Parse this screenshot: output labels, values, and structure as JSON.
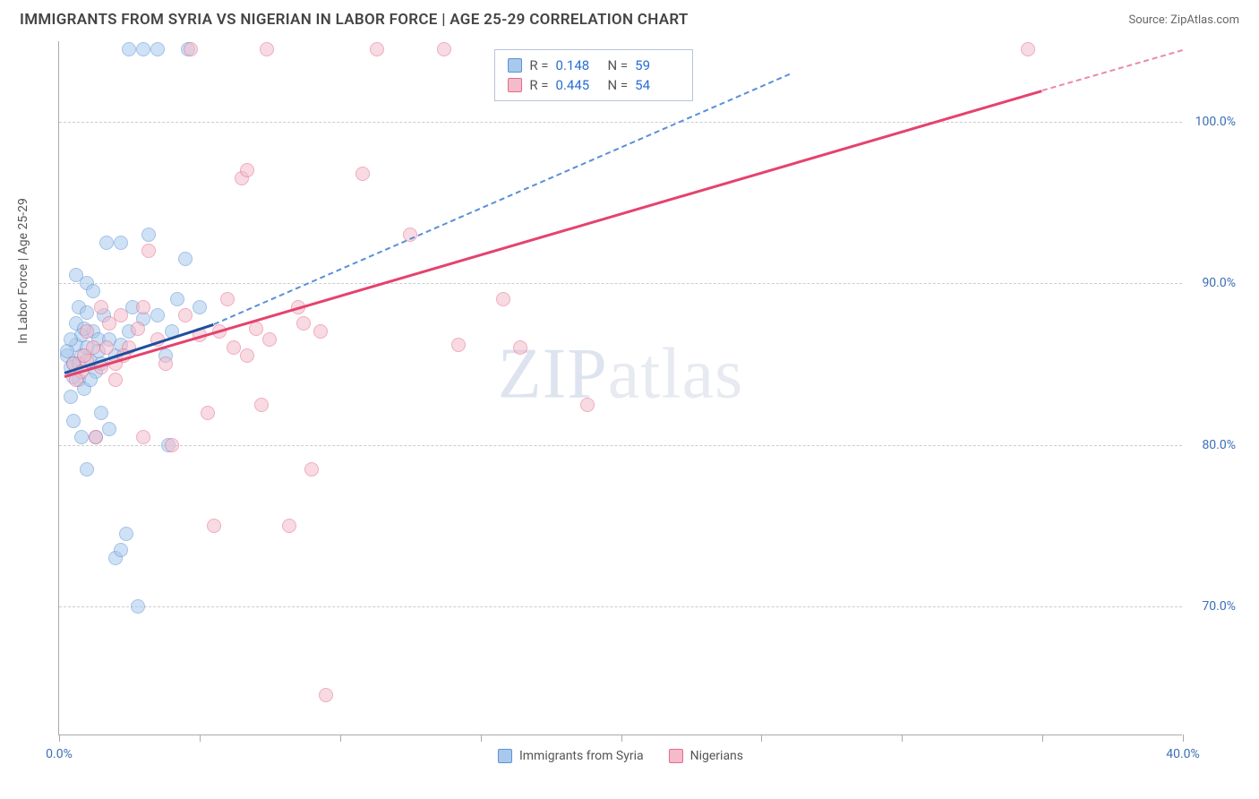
{
  "header": {
    "title": "IMMIGRANTS FROM SYRIA VS NIGERIAN IN LABOR FORCE | AGE 25-29 CORRELATION CHART",
    "source": "Source: ZipAtlas.com"
  },
  "chart": {
    "type": "scatter",
    "y_axis_title": "In Labor Force | Age 25-29",
    "xlim": [
      0,
      40
    ],
    "ylim": [
      62,
      105
    ],
    "x_ticks": [
      0,
      5,
      10,
      15,
      20,
      25,
      30,
      35,
      40
    ],
    "x_tick_labels": {
      "0": "0.0%",
      "40": "40.0%"
    },
    "y_ticks": [
      70,
      80,
      90,
      100
    ],
    "y_tick_labels": {
      "70": "70.0%",
      "80": "80.0%",
      "90": "90.0%",
      "100": "100.0%"
    },
    "grid_color": "#cccccc",
    "background_color": "#ffffff",
    "axis_color": "#aaaaaa",
    "tick_label_color": "#3b6fb6",
    "watermark": {
      "text_part1": "ZIP",
      "text_part2": "atlas"
    },
    "series": [
      {
        "name": "Immigrants from Syria",
        "marker_fill": "#a9c9ec",
        "marker_stroke": "#5a92d4",
        "trend_solid_color": "#1f4e9c",
        "trend_dash_color": "#5a8fd6",
        "R": "0.148",
        "N": "59",
        "trend_solid": {
          "x1": 0.2,
          "y1": 84.5,
          "x2": 5.5,
          "y2": 87.5
        },
        "trend_dash": {
          "x1": 5.5,
          "y1": 87.5,
          "x2": 26,
          "y2": 103
        },
        "points": [
          [
            0.3,
            85.5
          ],
          [
            0.4,
            84.8
          ],
          [
            0.5,
            85.0
          ],
          [
            0.6,
            86.2
          ],
          [
            0.7,
            84.0
          ],
          [
            0.8,
            85.5
          ],
          [
            0.9,
            83.5
          ],
          [
            1.0,
            86.0
          ],
          [
            1.1,
            85.2
          ],
          [
            1.2,
            87.0
          ],
          [
            1.3,
            84.5
          ],
          [
            1.4,
            86.5
          ],
          [
            1.5,
            85.0
          ],
          [
            0.6,
            87.5
          ],
          [
            0.7,
            88.5
          ],
          [
            1.0,
            90.0
          ],
          [
            1.2,
            89.5
          ],
          [
            1.7,
            92.5
          ],
          [
            1.0,
            78.5
          ],
          [
            1.3,
            80.5
          ],
          [
            1.5,
            82.0
          ],
          [
            1.8,
            81.0
          ],
          [
            2.0,
            85.5
          ],
          [
            2.2,
            86.2
          ],
          [
            2.5,
            87.0
          ],
          [
            2.2,
            92.5
          ],
          [
            2.5,
            104.5
          ],
          [
            3.0,
            87.8
          ],
          [
            3.0,
            104.5
          ],
          [
            3.2,
            93.0
          ],
          [
            3.5,
            88.0
          ],
          [
            3.8,
            85.5
          ],
          [
            3.9,
            80.0
          ],
          [
            4.0,
            87.0
          ],
          [
            4.2,
            89.0
          ],
          [
            4.5,
            91.5
          ],
          [
            4.6,
            104.5
          ],
          [
            5.0,
            88.5
          ],
          [
            3.5,
            104.5
          ],
          [
            2.0,
            73.0
          ],
          [
            2.2,
            73.5
          ],
          [
            2.4,
            74.5
          ],
          [
            2.8,
            70.0
          ],
          [
            0.4,
            83.0
          ],
          [
            0.5,
            81.5
          ],
          [
            0.8,
            80.5
          ],
          [
            1.6,
            88.0
          ],
          [
            1.8,
            86.5
          ],
          [
            2.6,
            88.5
          ],
          [
            0.3,
            85.8
          ],
          [
            0.5,
            84.2
          ],
          [
            0.6,
            90.5
          ],
          [
            0.8,
            86.8
          ],
          [
            1.1,
            84.0
          ],
          [
            1.4,
            85.8
          ],
          [
            0.9,
            87.2
          ],
          [
            1.0,
            88.2
          ],
          [
            0.4,
            86.5
          ],
          [
            0.7,
            85.0
          ]
        ]
      },
      {
        "name": "Nigerians",
        "marker_fill": "#f4bccb",
        "marker_stroke": "#e46a8c",
        "trend_solid_color": "#e4436d",
        "trend_dash_color": "#e98aa5",
        "R": "0.445",
        "N": "54",
        "trend_solid": {
          "x1": 0.2,
          "y1": 84.3,
          "x2": 35,
          "y2": 102
        },
        "trend_dash": {
          "x1": 35,
          "y1": 102,
          "x2": 40,
          "y2": 104.5
        },
        "points": [
          [
            0.5,
            85.0
          ],
          [
            0.8,
            84.5
          ],
          [
            1.0,
            85.2
          ],
          [
            1.2,
            86.0
          ],
          [
            1.3,
            80.5
          ],
          [
            1.5,
            84.8
          ],
          [
            1.8,
            87.5
          ],
          [
            2.0,
            85.0
          ],
          [
            2.2,
            88.0
          ],
          [
            2.5,
            86.0
          ],
          [
            2.8,
            87.2
          ],
          [
            3.0,
            80.5
          ],
          [
            3.2,
            92.0
          ],
          [
            3.5,
            86.5
          ],
          [
            3.8,
            85.0
          ],
          [
            4.0,
            80.0
          ],
          [
            4.5,
            88.0
          ],
          [
            4.7,
            104.5
          ],
          [
            5.0,
            86.8
          ],
          [
            5.3,
            82.0
          ],
          [
            5.5,
            75.0
          ],
          [
            5.7,
            87.0
          ],
          [
            6.0,
            89.0
          ],
          [
            6.2,
            86.0
          ],
          [
            6.5,
            96.5
          ],
          [
            6.7,
            97.0
          ],
          [
            6.7,
            85.5
          ],
          [
            7.0,
            87.2
          ],
          [
            7.2,
            82.5
          ],
          [
            7.5,
            86.5
          ],
          [
            7.4,
            104.5
          ],
          [
            8.2,
            75.0
          ],
          [
            8.5,
            88.5
          ],
          [
            8.7,
            87.5
          ],
          [
            9.0,
            78.5
          ],
          [
            9.3,
            87.0
          ],
          [
            9.5,
            64.5
          ],
          [
            10.8,
            96.8
          ],
          [
            11.3,
            104.5
          ],
          [
            12.5,
            93.0
          ],
          [
            13.7,
            104.5
          ],
          [
            14.2,
            86.2
          ],
          [
            15.8,
            89.0
          ],
          [
            16.4,
            86.0
          ],
          [
            18.8,
            82.5
          ],
          [
            34.5,
            104.5
          ],
          [
            1.0,
            87.0
          ],
          [
            1.5,
            88.5
          ],
          [
            2.0,
            84.0
          ],
          [
            2.3,
            85.5
          ],
          [
            3.0,
            88.5
          ],
          [
            1.7,
            86.0
          ],
          [
            0.6,
            84.0
          ],
          [
            0.9,
            85.5
          ]
        ]
      }
    ],
    "stat_box": {
      "rows": [
        {
          "color_fill": "#a9c9ec",
          "color_stroke": "#5a92d4",
          "R": "0.148",
          "N": "59"
        },
        {
          "color_fill": "#f4bccb",
          "color_stroke": "#e46a8c",
          "R": "0.445",
          "N": "54"
        }
      ]
    },
    "bottom_legend": [
      {
        "fill": "#a9c9ec",
        "stroke": "#5a92d4",
        "label": "Immigrants from Syria"
      },
      {
        "fill": "#f4bccb",
        "stroke": "#e46a8c",
        "label": "Nigerians"
      }
    ]
  }
}
